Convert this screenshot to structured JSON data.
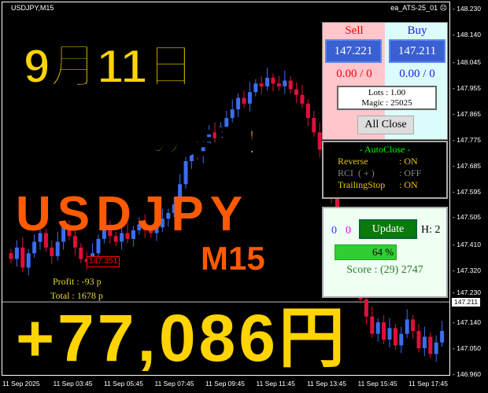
{
  "header": {
    "symbol": "USDJPY,M15",
    "ea_name": "ea_ATS-25_01",
    "ea_status_icon": "sad-face-icon"
  },
  "price_axis": {
    "ticks": [
      "148.230",
      "148.140",
      "148.045",
      "147.955",
      "147.865",
      "147.775",
      "147.685",
      "147.595",
      "147.505",
      "147.410",
      "147.320",
      "147.230",
      "147.140",
      "147.050",
      "146.960"
    ],
    "current": "147.211"
  },
  "time_axis": {
    "ticks": [
      "11 Sep 2025",
      "11 Sep 03:45",
      "11 Sep 05:45",
      "11 Sep 07:45",
      "11 Sep 09:45",
      "11 Sep 11:45",
      "11 Sep 13:45",
      "11 Sep 15:45",
      "11 Sep 17:45"
    ]
  },
  "candles_close": [
    147.36,
    147.4,
    147.33,
    147.38,
    147.42,
    147.45,
    147.4,
    147.37,
    147.42,
    147.47,
    147.44,
    147.4,
    147.36,
    147.35,
    147.38,
    147.43,
    147.46,
    147.44,
    147.42,
    147.45,
    147.43,
    147.46,
    147.48,
    147.46,
    147.45,
    147.47,
    147.5,
    147.52,
    147.55,
    147.62,
    147.7,
    147.74,
    147.72,
    147.76,
    147.8,
    147.78,
    147.82,
    147.85,
    147.88,
    147.92,
    147.9,
    147.94,
    147.97,
    147.96,
    147.99,
    147.97,
    147.96,
    147.98,
    147.95,
    147.93,
    147.9,
    147.85,
    147.8,
    147.74,
    147.66,
    147.58,
    147.5,
    147.42,
    147.35,
    147.28,
    147.22,
    147.16,
    147.1,
    147.14,
    147.08,
    147.12,
    147.06,
    147.1,
    147.15,
    147.11,
    147.05,
    147.09,
    147.03,
    147.07,
    147.11
  ],
  "order_label": "147.351",
  "overlay": {
    "title": "9月11日",
    "subtitle": "の結果！",
    "pair": "USDJPY",
    "timeframe": "M15",
    "profit_yen": "+77,086円"
  },
  "stats": {
    "profit": "Profit : -93 p",
    "total": "Total : 1678 p"
  },
  "trade_panel": {
    "sell_label": "Sell",
    "buy_label": "Buy",
    "sell_price": "147.221",
    "buy_price": "147.211",
    "sell_pos": "0.00 / 0",
    "buy_pos": "0.00 / 0",
    "lots": "Lots   : 1.00",
    "magic": "Magic : 25025",
    "all_close": "All Close"
  },
  "autoclose": {
    "title": "- AutoClose -",
    "rows": [
      {
        "name": "Reverse",
        "value": ": ON"
      },
      {
        "name": "RCI  ( + )",
        "value": ": OFF"
      },
      {
        "name": "TrailingStop",
        "value": ": ON"
      }
    ]
  },
  "score_panel": {
    "count_blue": "0",
    "count_magenta": "0",
    "update": "Update",
    "h": "H: 2",
    "progress_label": "64 %",
    "progress": 64,
    "score": "Score : (29) 2747"
  },
  "colors": {
    "bull": "#3c6df0",
    "bear": "#e0103a",
    "overlay_yellow": "#ffd400",
    "overlay_orange": "#ff5a00"
  }
}
